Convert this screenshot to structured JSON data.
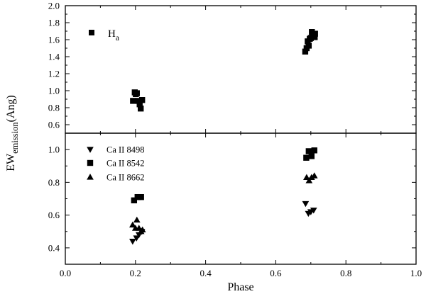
{
  "chart_data": [
    {
      "type": "scatter",
      "panel": "top",
      "xlabel": "Phase",
      "ylabel_main": "EW",
      "ylabel_sub": "emission",
      "ylabel_unit": "(Ang)",
      "xlim": [
        0.0,
        1.0
      ],
      "ylim": [
        0.5,
        2.0
      ],
      "x_ticks": [
        "0.0",
        "0.2",
        "0.4",
        "0.6",
        "0.8",
        "1.0"
      ],
      "y_ticks": [
        "0.6",
        "0.8",
        "1.0",
        "1.2",
        "1.4",
        "1.6",
        "1.8",
        "2.0"
      ],
      "legend_position": "top-left",
      "series": [
        {
          "name_main": "H",
          "name_sub": "a",
          "marker": "square",
          "points": [
            {
              "x": 0.193,
              "y": 0.88
            },
            {
              "x": 0.198,
              "y": 0.98
            },
            {
              "x": 0.201,
              "y": 0.96
            },
            {
              "x": 0.204,
              "y": 0.97
            },
            {
              "x": 0.208,
              "y": 0.88
            },
            {
              "x": 0.212,
              "y": 0.84
            },
            {
              "x": 0.215,
              "y": 0.79
            },
            {
              "x": 0.219,
              "y": 0.89
            },
            {
              "x": 0.684,
              "y": 1.46
            },
            {
              "x": 0.688,
              "y": 1.5
            },
            {
              "x": 0.691,
              "y": 1.58
            },
            {
              "x": 0.694,
              "y": 1.53
            },
            {
              "x": 0.697,
              "y": 1.61
            },
            {
              "x": 0.7,
              "y": 1.62
            },
            {
              "x": 0.703,
              "y": 1.69
            },
            {
              "x": 0.707,
              "y": 1.66
            },
            {
              "x": 0.711,
              "y": 1.63
            },
            {
              "x": 0.712,
              "y": 1.67
            }
          ]
        }
      ]
    },
    {
      "type": "scatter",
      "panel": "bottom",
      "xlabel": "Phase",
      "xlim": [
        0.0,
        1.0
      ],
      "ylim": [
        0.3,
        1.1
      ],
      "x_ticks": [
        "0.0",
        "0.2",
        "0.4",
        "0.6",
        "0.8",
        "1.0"
      ],
      "y_ticks": [
        "0.4",
        "0.6",
        "0.8",
        "1.0"
      ],
      "legend_position": "top-left",
      "series": [
        {
          "name": "Ca II 8498",
          "marker": "triangle-down",
          "points": [
            {
              "x": 0.192,
              "y": 0.44
            },
            {
              "x": 0.203,
              "y": 0.46
            },
            {
              "x": 0.21,
              "y": 0.48
            },
            {
              "x": 0.218,
              "y": 0.5
            },
            {
              "x": 0.685,
              "y": 0.67
            },
            {
              "x": 0.693,
              "y": 0.61
            },
            {
              "x": 0.7,
              "y": 0.62
            },
            {
              "x": 0.708,
              "y": 0.63
            }
          ]
        },
        {
          "name": "Ca II 8542",
          "marker": "square",
          "points": [
            {
              "x": 0.196,
              "y": 0.69
            },
            {
              "x": 0.206,
              "y": 0.71
            },
            {
              "x": 0.216,
              "y": 0.71
            },
            {
              "x": 0.687,
              "y": 0.95
            },
            {
              "x": 0.694,
              "y": 0.99
            },
            {
              "x": 0.702,
              "y": 0.96
            },
            {
              "x": 0.71,
              "y": 0.995
            }
          ]
        },
        {
          "name": "Ca II 8662",
          "marker": "triangle-up",
          "points": [
            {
              "x": 0.192,
              "y": 0.54
            },
            {
              "x": 0.2,
              "y": 0.52
            },
            {
              "x": 0.204,
              "y": 0.57
            },
            {
              "x": 0.21,
              "y": 0.52
            },
            {
              "x": 0.216,
              "y": 0.5
            },
            {
              "x": 0.22,
              "y": 0.51
            },
            {
              "x": 0.688,
              "y": 0.83
            },
            {
              "x": 0.695,
              "y": 0.81
            },
            {
              "x": 0.702,
              "y": 0.83
            },
            {
              "x": 0.71,
              "y": 0.84
            }
          ]
        }
      ]
    }
  ]
}
